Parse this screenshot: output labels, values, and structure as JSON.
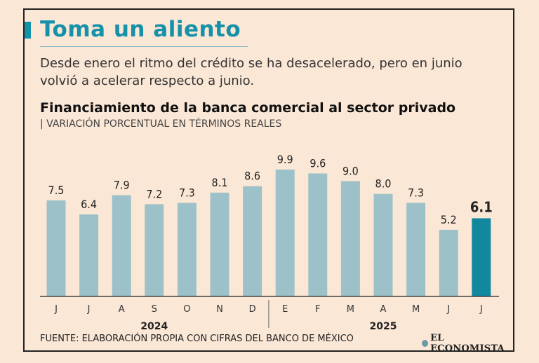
{
  "header": {
    "title": "Toma un aliento",
    "subtitle": "Desde enero el ritmo del crédito se ha desacelerado, pero en junio volvió a acelerar respecto a junio."
  },
  "chart_data": {
    "type": "bar",
    "title": "Financiamiento de la banca comercial al sector privado",
    "subtitle": "| VARIACIÓN PORCENTUAL EN TÉRMINOS REALES",
    "categories": [
      "J",
      "J",
      "A",
      "S",
      "O",
      "N",
      "D",
      "E",
      "F",
      "M",
      "A",
      "M",
      "J",
      "J"
    ],
    "values": [
      7.5,
      6.4,
      7.9,
      7.2,
      7.3,
      8.1,
      8.6,
      9.9,
      9.6,
      9.0,
      8.0,
      7.3,
      5.2,
      6.1
    ],
    "value_labels": [
      "7.5",
      "6.4",
      "7.9",
      "7.2",
      "7.3",
      "8.1",
      "8.6",
      "9.9",
      "9.6",
      "9.0",
      "8.0",
      "7.3",
      "5.2",
      "6.1"
    ],
    "year_groups": [
      {
        "label": "2024",
        "start": 0,
        "end": 6
      },
      {
        "label": "2025",
        "start": 7,
        "end": 13
      }
    ],
    "highlight_index": 13,
    "ylim": [
      0,
      10.5
    ],
    "xlabel": "",
    "ylabel": "",
    "colors": {
      "bar": "#9dc1c8",
      "highlight": "#12889f",
      "axis": "#444444"
    }
  },
  "footer": {
    "source": "FUENTE: ELABORACIÓN PROPIA CON CIFRAS DEL BANCO DE MÉXICO",
    "brand": "EL ECONOMISTA"
  }
}
